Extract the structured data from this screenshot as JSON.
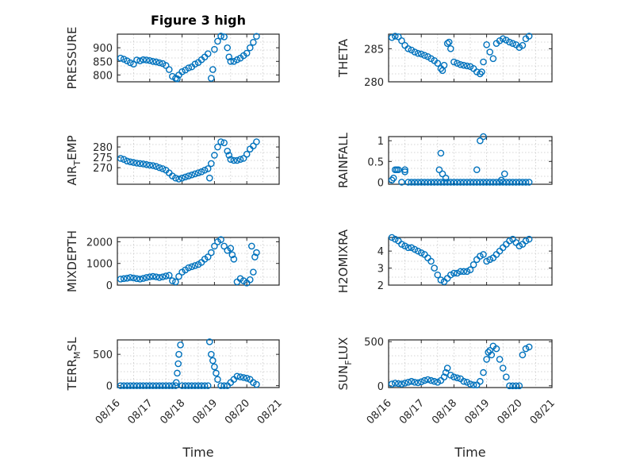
{
  "colors": {
    "marker": "#0072BD",
    "axis": "#262626",
    "grid": "#c8c8c8"
  },
  "x_tick_labels": [
    "08/16",
    "08/17",
    "08/18",
    "08/19",
    "08/20",
    "08/21"
  ],
  "chart_data": [
    {
      "type": "scatter",
      "title": "Figure 3 high",
      "ylabel": "PRESSURE",
      "xlim": [
        0,
        5
      ],
      "ylim": [
        775,
        950
      ],
      "yticks": [
        800,
        850,
        900
      ],
      "grid": true,
      "x": [
        0.1,
        0.2,
        0.3,
        0.4,
        0.5,
        0.6,
        0.7,
        0.8,
        0.9,
        1.0,
        1.1,
        1.2,
        1.3,
        1.4,
        1.5,
        1.6,
        1.7,
        1.8,
        1.85,
        1.9,
        2.0,
        2.1,
        2.2,
        2.3,
        2.4,
        2.5,
        2.6,
        2.7,
        2.8,
        2.9,
        2.95,
        3.0,
        3.1,
        3.2,
        3.3,
        3.4,
        3.45,
        3.5,
        3.6,
        3.7,
        3.8,
        3.9,
        4.0,
        4.1,
        4.2,
        4.3
      ],
      "y": [
        862,
        858,
        852,
        845,
        840,
        855,
        852,
        856,
        855,
        853,
        850,
        848,
        845,
        842,
        835,
        820,
        795,
        788,
        786,
        800,
        812,
        818,
        826,
        830,
        840,
        846,
        856,
        866,
        878,
        788,
        820,
        894,
        924,
        943,
        940,
        900,
        866,
        850,
        850,
        856,
        862,
        871,
        880,
        900,
        920,
        942
      ]
    },
    {
      "type": "scatter",
      "ylabel": "THETA",
      "xlim": [
        0,
        5
      ],
      "ylim": [
        280,
        287.2
      ],
      "yticks": [
        280,
        285
      ],
      "grid": true,
      "x": [
        0.1,
        0.2,
        0.3,
        0.4,
        0.5,
        0.6,
        0.7,
        0.8,
        0.9,
        1.0,
        1.1,
        1.2,
        1.3,
        1.4,
        1.5,
        1.6,
        1.65,
        1.7,
        1.8,
        1.85,
        1.9,
        2.0,
        2.1,
        2.2,
        2.3,
        2.4,
        2.5,
        2.6,
        2.7,
        2.8,
        2.85,
        2.9,
        3.0,
        3.1,
        3.2,
        3.3,
        3.4,
        3.5,
        3.6,
        3.7,
        3.8,
        3.9,
        4.0,
        4.1,
        4.2,
        4.3
      ],
      "y": [
        286.7,
        286.9,
        286.8,
        286.2,
        285.5,
        285.0,
        284.8,
        284.5,
        284.3,
        284.2,
        284.0,
        283.8,
        283.5,
        283.2,
        282.8,
        282.0,
        281.7,
        282.5,
        285.8,
        286.0,
        285.0,
        283.0,
        282.8,
        282.6,
        282.5,
        282.4,
        282.3,
        282.0,
        281.5,
        281.2,
        281.5,
        283.0,
        285.6,
        284.5,
        283.5,
        285.8,
        286.2,
        286.5,
        286.3,
        286.0,
        285.8,
        285.6,
        285.2,
        285.5,
        286.5,
        286.9
      ]
    },
    {
      "type": "scatter",
      "ylabel_main": "AIR",
      "ylabel_sub": "T",
      "ylabel_rest": "EMP",
      "xlim": [
        0,
        5
      ],
      "ylim": [
        262,
        285
      ],
      "yticks": [
        270,
        275,
        280
      ],
      "grid": true,
      "x": [
        0.1,
        0.2,
        0.3,
        0.4,
        0.5,
        0.6,
        0.7,
        0.8,
        0.9,
        1.0,
        1.1,
        1.2,
        1.3,
        1.4,
        1.5,
        1.6,
        1.7,
        1.8,
        1.9,
        2.0,
        2.1,
        2.2,
        2.3,
        2.4,
        2.5,
        2.6,
        2.7,
        2.8,
        2.85,
        2.9,
        3.0,
        3.1,
        3.2,
        3.3,
        3.4,
        3.45,
        3.5,
        3.6,
        3.7,
        3.8,
        3.9,
        4.0,
        4.1,
        4.2,
        4.3
      ],
      "y": [
        274.5,
        274.0,
        273.2,
        272.8,
        272.5,
        272.2,
        272.0,
        271.8,
        271.5,
        271.2,
        271.0,
        270.6,
        270.0,
        269.5,
        268.8,
        267.5,
        266.0,
        265.0,
        264.5,
        265.0,
        265.5,
        266.0,
        266.5,
        267.0,
        267.5,
        268.0,
        268.8,
        269.5,
        265.0,
        272.0,
        276.0,
        280.0,
        282.5,
        282.0,
        278.0,
        276.0,
        274.0,
        273.5,
        273.5,
        274.0,
        274.5,
        276.5,
        279.0,
        280.5,
        282.5
      ]
    },
    {
      "type": "scatter",
      "ylabel": "RAINFALL",
      "xlim": [
        0,
        5
      ],
      "ylim": [
        -0.05,
        1.1
      ],
      "yticks": [
        0,
        0.5,
        1
      ],
      "grid": true,
      "x": [
        0.1,
        0.2,
        0.3,
        0.4,
        0.5,
        0.6,
        0.7,
        0.8,
        0.9,
        1.0,
        1.1,
        1.2,
        1.3,
        1.4,
        1.5,
        1.6,
        1.7,
        1.8,
        1.9,
        2.0,
        2.1,
        2.2,
        2.3,
        2.4,
        2.5,
        2.6,
        2.7,
        2.8,
        2.9,
        3.0,
        3.1,
        3.2,
        3.3,
        3.4,
        3.5,
        3.6,
        3.7,
        3.8,
        3.9,
        4.0,
        4.1,
        4.2,
        4.3,
        0.15,
        0.25,
        0.5,
        1.55,
        1.65,
        1.6,
        1.75,
        2.7,
        2.8,
        2.9,
        3.45,
        3.55
      ],
      "y": [
        0.05,
        0.3,
        0.3,
        0,
        0.3,
        0,
        0,
        0,
        0,
        0,
        0,
        0,
        0,
        0,
        0,
        0,
        0,
        0,
        0,
        0,
        0,
        0,
        0,
        0,
        0,
        0,
        0,
        0,
        0,
        0,
        0,
        0,
        0,
        0,
        0,
        0,
        0,
        0,
        0,
        0,
        0,
        0,
        0,
        0.1,
        0.3,
        0.25,
        0.3,
        0.2,
        0.7,
        0.1,
        0.3,
        1.0,
        1.1,
        0.05,
        0.2
      ]
    },
    {
      "type": "scatter",
      "ylabel": "MIXDEPTH",
      "xlim": [
        0,
        5
      ],
      "ylim": [
        0,
        2200
      ],
      "yticks": [
        0,
        1000,
        2000
      ],
      "grid": true,
      "x": [
        0.1,
        0.2,
        0.3,
        0.4,
        0.5,
        0.6,
        0.7,
        0.8,
        0.9,
        1.0,
        1.1,
        1.2,
        1.3,
        1.4,
        1.5,
        1.6,
        1.7,
        1.8,
        1.9,
        2.0,
        2.1,
        2.2,
        2.3,
        2.4,
        2.5,
        2.6,
        2.7,
        2.8,
        2.9,
        3.0,
        3.1,
        3.2,
        3.3,
        3.4,
        3.5,
        3.55,
        3.6,
        3.7,
        3.8,
        3.9,
        4.0,
        4.1,
        4.2,
        4.3,
        4.15,
        4.25
      ],
      "y": [
        280,
        300,
        320,
        350,
        330,
        300,
        280,
        310,
        350,
        380,
        400,
        380,
        350,
        380,
        420,
        450,
        200,
        150,
        400,
        600,
        700,
        800,
        850,
        900,
        950,
        1050,
        1200,
        1300,
        1500,
        1800,
        2000,
        2100,
        1800,
        1600,
        1700,
        1400,
        1200,
        150,
        300,
        200,
        100,
        250,
        600,
        1500,
        1800,
        1300
      ]
    },
    {
      "type": "scatter",
      "ylabel": "H2OMIXRA",
      "xlim": [
        0,
        5
      ],
      "ylim": [
        2,
        4.8
      ],
      "yticks": [
        2,
        3,
        4
      ],
      "grid": true,
      "x": [
        0.1,
        0.2,
        0.3,
        0.4,
        0.5,
        0.6,
        0.7,
        0.8,
        0.9,
        1.0,
        1.1,
        1.2,
        1.3,
        1.4,
        1.5,
        1.6,
        1.7,
        1.8,
        1.9,
        2.0,
        2.1,
        2.2,
        2.3,
        2.4,
        2.5,
        2.6,
        2.7,
        2.8,
        2.9,
        3.0,
        3.1,
        3.2,
        3.3,
        3.4,
        3.5,
        3.6,
        3.7,
        3.8,
        3.9,
        4.0,
        4.1,
        4.2,
        4.3
      ],
      "y": [
        4.8,
        4.7,
        4.6,
        4.4,
        4.3,
        4.2,
        4.2,
        4.1,
        4.0,
        3.9,
        3.8,
        3.6,
        3.4,
        3.0,
        2.6,
        2.3,
        2.2,
        2.4,
        2.6,
        2.7,
        2.7,
        2.8,
        2.8,
        2.8,
        2.9,
        3.2,
        3.5,
        3.7,
        3.8,
        3.4,
        3.5,
        3.6,
        3.8,
        4.0,
        4.2,
        4.4,
        4.6,
        4.7,
        4.5,
        4.3,
        4.4,
        4.6,
        4.7
      ]
    },
    {
      "type": "scatter",
      "ylabel_main": "TERR",
      "ylabel_sub": "M",
      "ylabel_rest": "SL",
      "xlim": [
        0,
        5
      ],
      "ylim": [
        -30,
        730
      ],
      "yticks": [
        0,
        500
      ],
      "grid": true,
      "x": [
        0.1,
        0.2,
        0.3,
        0.4,
        0.5,
        0.6,
        0.7,
        0.8,
        0.9,
        1.0,
        1.1,
        1.2,
        1.3,
        1.4,
        1.5,
        1.6,
        1.7,
        1.8,
        1.82,
        1.85,
        1.88,
        1.9,
        1.95,
        2.0,
        2.1,
        2.2,
        2.3,
        2.4,
        2.5,
        2.6,
        2.7,
        2.8,
        2.85,
        2.9,
        2.95,
        3.0,
        3.05,
        3.1,
        3.2,
        3.3,
        3.4,
        3.5,
        3.6,
        3.7,
        3.8,
        3.9,
        4.0,
        4.1,
        4.2,
        4.3
      ],
      "y": [
        0,
        0,
        0,
        0,
        0,
        0,
        0,
        0,
        0,
        0,
        0,
        0,
        0,
        0,
        0,
        0,
        0,
        0,
        50,
        200,
        350,
        500,
        650,
        0,
        0,
        0,
        0,
        0,
        0,
        0,
        0,
        0,
        700,
        500,
        400,
        300,
        200,
        100,
        0,
        0,
        0,
        50,
        100,
        150,
        140,
        130,
        120,
        100,
        50,
        20
      ]
    },
    {
      "type": "scatter",
      "ylabel_main": "SUN",
      "ylabel_sub": "F",
      "ylabel_rest": "LUX",
      "xlim": [
        0,
        5
      ],
      "ylim": [
        -20,
        520
      ],
      "yticks": [
        0,
        500
      ],
      "grid": true,
      "x": [
        0.1,
        0.2,
        0.3,
        0.4,
        0.5,
        0.6,
        0.7,
        0.8,
        0.9,
        1.0,
        1.1,
        1.2,
        1.3,
        1.4,
        1.5,
        1.6,
        1.7,
        1.75,
        1.8,
        1.9,
        2.0,
        2.1,
        2.2,
        2.3,
        2.4,
        2.5,
        2.6,
        2.7,
        2.8,
        2.9,
        3.0,
        3.05,
        3.1,
        3.15,
        3.2,
        3.3,
        3.4,
        3.5,
        3.6,
        3.7,
        3.8,
        3.9,
        4.0,
        4.1,
        4.2,
        4.3
      ],
      "y": [
        20,
        30,
        25,
        20,
        30,
        40,
        50,
        40,
        35,
        45,
        60,
        70,
        60,
        50,
        40,
        60,
        100,
        150,
        200,
        120,
        100,
        90,
        80,
        50,
        40,
        20,
        10,
        10,
        50,
        150,
        300,
        380,
        400,
        350,
        450,
        420,
        300,
        200,
        100,
        0,
        0,
        0,
        0,
        350,
        420,
        440
      ]
    }
  ],
  "x_axis_label": "Time"
}
